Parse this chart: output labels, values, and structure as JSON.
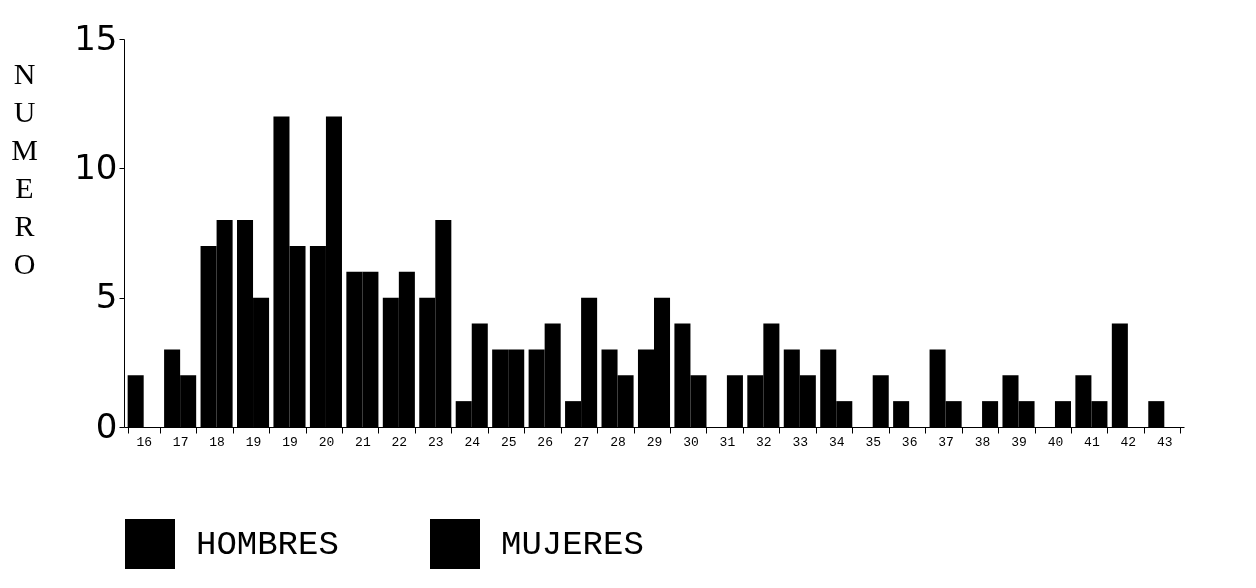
{
  "chart_data": {
    "type": "bar",
    "ylabel": "NUMERO",
    "categories": [
      "16",
      "17",
      "18",
      "19",
      "19",
      "20",
      "21",
      "22",
      "23",
      "24",
      "25",
      "26",
      "27",
      "28",
      "29",
      "30",
      "31",
      "32",
      "33",
      "34",
      "35",
      "36",
      "37",
      "38",
      "39",
      "40",
      "41",
      "42",
      "43"
    ],
    "series": [
      {
        "name": "HOMBRES",
        "color": "#000000",
        "values": [
          2,
          3,
          7,
          8,
          12,
          7,
          6,
          5,
          5,
          1,
          3,
          3,
          1,
          3,
          3,
          4,
          0,
          2,
          3,
          3,
          0,
          1,
          3,
          0,
          2,
          0,
          2,
          4,
          1
        ]
      },
      {
        "name": "MUJERES",
        "color": "#000000",
        "values": [
          0,
          2,
          8,
          5,
          7,
          12,
          6,
          6,
          8,
          4,
          3,
          4,
          5,
          2,
          5,
          2,
          2,
          4,
          2,
          1,
          2,
          0,
          1,
          1,
          1,
          1,
          1,
          0,
          0
        ]
      }
    ],
    "ylim": [
      0,
      15
    ],
    "yticks": [
      0,
      5,
      10,
      15
    ],
    "grid": false,
    "legend": "bottom"
  }
}
